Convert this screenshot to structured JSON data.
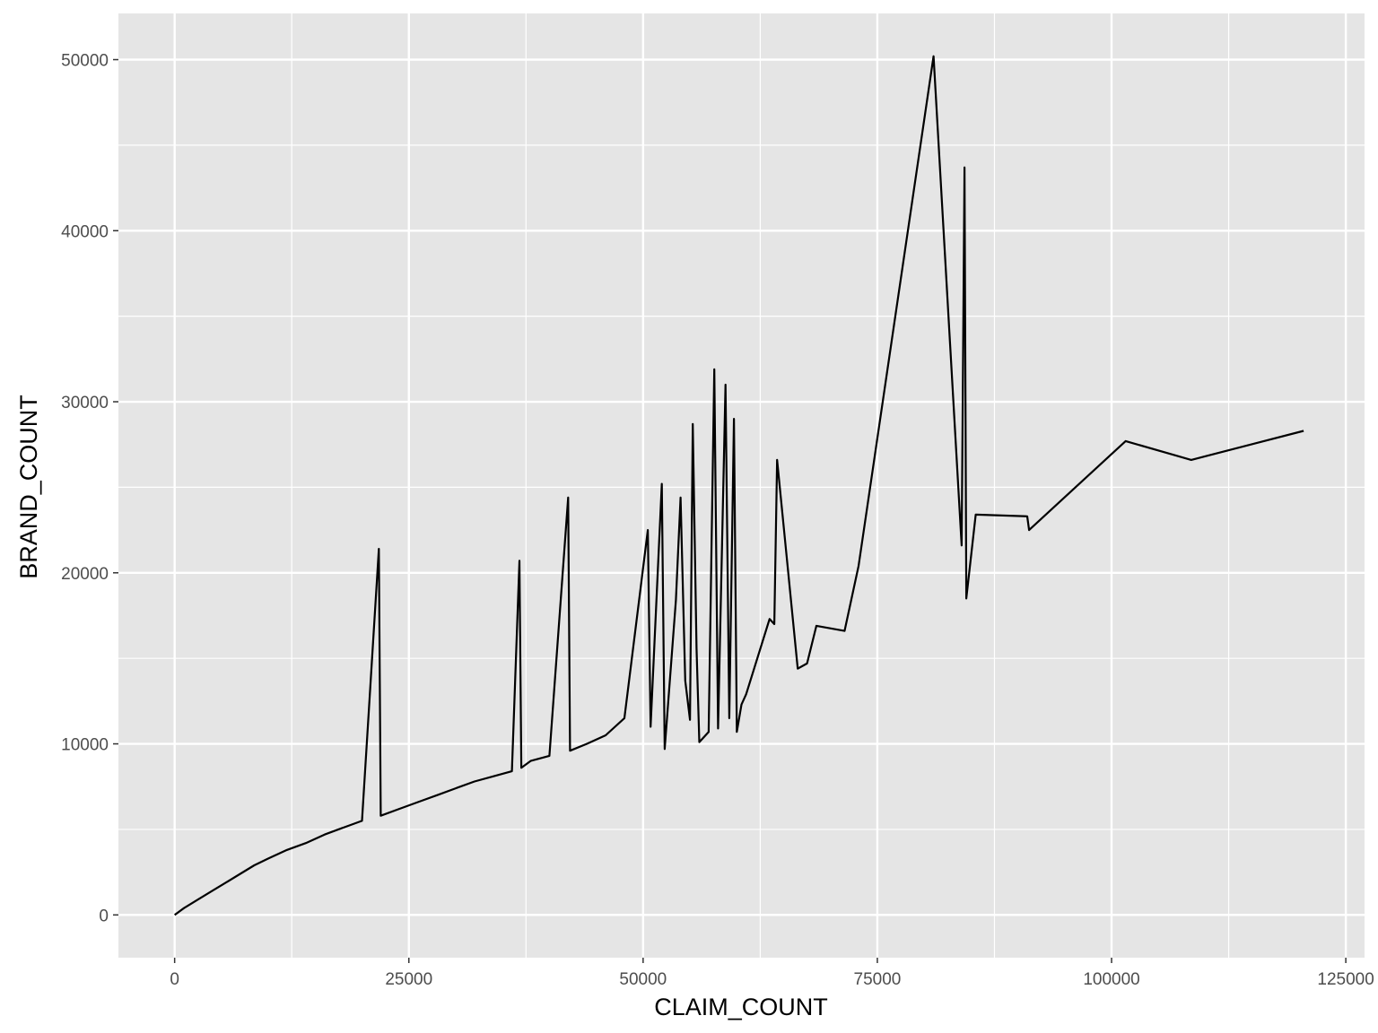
{
  "chart_data": {
    "type": "line",
    "title": "",
    "xlabel": "CLAIM_COUNT",
    "ylabel": "BRAND_COUNT",
    "xlim": [
      -6000,
      127000
    ],
    "ylim": [
      -2500,
      52700
    ],
    "x_ticks": [
      0,
      25000,
      50000,
      75000,
      100000,
      125000
    ],
    "x_tick_labels": [
      "0",
      "25000",
      "50000",
      "75000",
      "100000",
      "125000"
    ],
    "y_ticks": [
      0,
      10000,
      20000,
      30000,
      40000,
      50000
    ],
    "y_tick_labels": [
      "0",
      "10000",
      "20000",
      "30000",
      "40000",
      "50000"
    ],
    "grid": true,
    "panel_background": "#e5e5e5",
    "grid_color": "#ffffff",
    "line_color": "#000000",
    "series": [
      {
        "values": [
          [
            0,
            0
          ],
          [
            1000,
            400
          ],
          [
            2500,
            900
          ],
          [
            4000,
            1400
          ],
          [
            5500,
            1900
          ],
          [
            7000,
            2400
          ],
          [
            8500,
            2900
          ],
          [
            10000,
            3300
          ],
          [
            12000,
            3800
          ],
          [
            14000,
            4200
          ],
          [
            16000,
            4700
          ],
          [
            18000,
            5100
          ],
          [
            20000,
            5500
          ],
          [
            21800,
            21400
          ],
          [
            22000,
            5800
          ],
          [
            24000,
            6200
          ],
          [
            26000,
            6600
          ],
          [
            28000,
            7000
          ],
          [
            30000,
            7400
          ],
          [
            32000,
            7800
          ],
          [
            34000,
            8100
          ],
          [
            36000,
            8400
          ],
          [
            36800,
            20700
          ],
          [
            37000,
            8600
          ],
          [
            38000,
            9000
          ],
          [
            40000,
            9300
          ],
          [
            42000,
            24400
          ],
          [
            42200,
            9600
          ],
          [
            44000,
            10000
          ],
          [
            46000,
            10500
          ],
          [
            48000,
            11500
          ],
          [
            50500,
            22500
          ],
          [
            50800,
            11000
          ],
          [
            52000,
            25200
          ],
          [
            52300,
            9700
          ],
          [
            53500,
            18400
          ],
          [
            54000,
            24400
          ],
          [
            54500,
            13700
          ],
          [
            55000,
            11400
          ],
          [
            55300,
            28700
          ],
          [
            55700,
            15600
          ],
          [
            56000,
            10100
          ],
          [
            57000,
            10700
          ],
          [
            57600,
            31900
          ],
          [
            58000,
            10900
          ],
          [
            58800,
            31000
          ],
          [
            59200,
            11500
          ],
          [
            59700,
            29000
          ],
          [
            60000,
            10700
          ],
          [
            60500,
            12300
          ],
          [
            61000,
            12900
          ],
          [
            63500,
            17300
          ],
          [
            64000,
            17000
          ],
          [
            64300,
            26600
          ],
          [
            66500,
            14400
          ],
          [
            67500,
            14700
          ],
          [
            68500,
            16900
          ],
          [
            71500,
            16600
          ],
          [
            73000,
            20400
          ],
          [
            81000,
            50200
          ],
          [
            84000,
            21600
          ],
          [
            84300,
            43700
          ],
          [
            84500,
            18500
          ],
          [
            85500,
            23400
          ],
          [
            91000,
            23300
          ],
          [
            91200,
            22500
          ],
          [
            101500,
            27700
          ],
          [
            108500,
            26600
          ],
          [
            120500,
            28300
          ]
        ]
      }
    ]
  }
}
